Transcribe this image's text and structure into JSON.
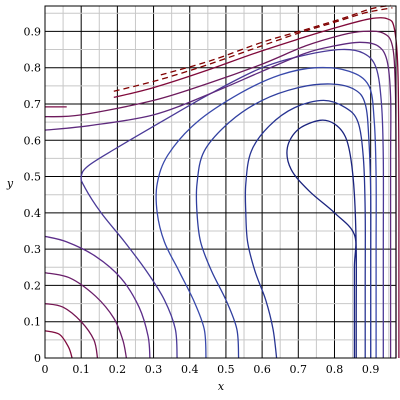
{
  "chart_data": {
    "type": "contour",
    "xlabel": "x",
    "ylabel": "y",
    "xlim": [
      0,
      0.97
    ],
    "ylim": [
      0,
      0.97
    ],
    "grid": true,
    "x_ticks": [
      0,
      0.1,
      0.2,
      0.3,
      0.4,
      0.5,
      0.6,
      0.7,
      0.8,
      0.9
    ],
    "y_ticks": [
      0,
      0.1,
      0.2,
      0.3,
      0.4,
      0.5,
      0.6,
      0.7,
      0.8,
      0.9
    ],
    "x_tick_labels": [
      "0",
      "0.1",
      "0.2",
      "0.3",
      "0.4",
      "0.5",
      "0.6",
      "0.7",
      "0.8",
      "0.9"
    ],
    "y_tick_labels": [
      "0",
      "0.1",
      "0.2",
      "0.3",
      "0.4",
      "0.5",
      "0.6",
      "0.7",
      "0.8",
      "0.9"
    ],
    "colors": {
      "grid": "#000000",
      "frame": "#000000",
      "line_low": "#1a1a8c",
      "line_high": "#800000"
    },
    "contours": [
      {
        "name": "c1",
        "color": "#1a237e",
        "points": [
          [
            0.855,
            0
          ],
          [
            0.855,
            0.12
          ],
          [
            0.855,
            0.25
          ],
          [
            0.855,
            0.34
          ],
          [
            0.8,
            0.4
          ],
          [
            0.73,
            0.46
          ],
          [
            0.68,
            0.52
          ],
          [
            0.67,
            0.58
          ],
          [
            0.7,
            0.63
          ],
          [
            0.76,
            0.655
          ],
          [
            0.8,
            0.645
          ],
          [
            0.83,
            0.61
          ],
          [
            0.845,
            0.55
          ],
          [
            0.855,
            0.45
          ],
          [
            0.86,
            0.3
          ],
          [
            0.86,
            0.12
          ],
          [
            0.86,
            0
          ]
        ]
      },
      {
        "name": "c2",
        "color": "#283593",
        "points": [
          [
            0.64,
            0
          ],
          [
            0.63,
            0.08
          ],
          [
            0.61,
            0.16
          ],
          [
            0.58,
            0.24
          ],
          [
            0.56,
            0.32
          ],
          [
            0.555,
            0.4
          ],
          [
            0.555,
            0.48
          ],
          [
            0.57,
            0.57
          ],
          [
            0.62,
            0.64
          ],
          [
            0.69,
            0.69
          ],
          [
            0.77,
            0.71
          ],
          [
            0.83,
            0.69
          ],
          [
            0.865,
            0.65
          ],
          [
            0.88,
            0.55
          ],
          [
            0.885,
            0.4
          ],
          [
            0.885,
            0.2
          ],
          [
            0.885,
            0
          ]
        ]
      },
      {
        "name": "c3",
        "color": "#303f9f",
        "points": [
          [
            0.535,
            0
          ],
          [
            0.53,
            0.08
          ],
          [
            0.5,
            0.16
          ],
          [
            0.46,
            0.24
          ],
          [
            0.43,
            0.32
          ],
          [
            0.42,
            0.4
          ],
          [
            0.42,
            0.48
          ],
          [
            0.44,
            0.57
          ],
          [
            0.51,
            0.65
          ],
          [
            0.6,
            0.71
          ],
          [
            0.7,
            0.745
          ],
          [
            0.79,
            0.755
          ],
          [
            0.855,
            0.74
          ],
          [
            0.885,
            0.7
          ],
          [
            0.895,
            0.6
          ],
          [
            0.9,
            0.45
          ],
          [
            0.9,
            0.25
          ],
          [
            0.9,
            0
          ]
        ]
      },
      {
        "name": "c4",
        "color": "#3949ab",
        "points": [
          [
            0.445,
            0
          ],
          [
            0.44,
            0.08
          ],
          [
            0.41,
            0.16
          ],
          [
            0.37,
            0.24
          ],
          [
            0.33,
            0.32
          ],
          [
            0.31,
            0.4
          ],
          [
            0.31,
            0.48
          ],
          [
            0.34,
            0.56
          ],
          [
            0.42,
            0.65
          ],
          [
            0.54,
            0.73
          ],
          [
            0.65,
            0.78
          ],
          [
            0.75,
            0.8
          ],
          [
            0.84,
            0.79
          ],
          [
            0.895,
            0.75
          ],
          [
            0.91,
            0.65
          ],
          [
            0.915,
            0.5
          ],
          [
            0.915,
            0.3
          ],
          [
            0.915,
            0
          ]
        ]
      },
      {
        "name": "c5",
        "color": "#4a3a98",
        "points": [
          [
            0.365,
            0
          ],
          [
            0.36,
            0.08
          ],
          [
            0.33,
            0.16
          ],
          [
            0.28,
            0.24
          ],
          [
            0.22,
            0.32
          ],
          [
            0.155,
            0.4
          ],
          [
            0.11,
            0.47
          ],
          [
            0.1,
            0.5
          ],
          [
            0.12,
            0.53
          ],
          [
            0.2,
            0.58
          ],
          [
            0.32,
            0.65
          ],
          [
            0.46,
            0.73
          ],
          [
            0.6,
            0.8
          ],
          [
            0.72,
            0.835
          ],
          [
            0.82,
            0.85
          ],
          [
            0.88,
            0.84
          ],
          [
            0.915,
            0.8
          ],
          [
            0.93,
            0.7
          ],
          [
            0.935,
            0.55
          ],
          [
            0.935,
            0.3
          ],
          [
            0.935,
            0
          ]
        ]
      },
      {
        "name": "c6",
        "color": "#5c2d8a",
        "points": [
          [
            0.0,
            0.335
          ],
          [
            0.06,
            0.32
          ],
          [
            0.14,
            0.28
          ],
          [
            0.21,
            0.22
          ],
          [
            0.26,
            0.14
          ],
          [
            0.285,
            0.06
          ],
          [
            0.29,
            0
          ]
        ]
      },
      {
        "name": "c7",
        "color": "#5e2a7e",
        "points": [
          [
            0.0,
            0.628
          ],
          [
            0.12,
            0.64
          ],
          [
            0.3,
            0.67
          ],
          [
            0.46,
            0.73
          ],
          [
            0.6,
            0.79
          ],
          [
            0.72,
            0.84
          ],
          [
            0.8,
            0.86
          ],
          [
            0.87,
            0.87
          ],
          [
            0.92,
            0.86
          ],
          [
            0.945,
            0.82
          ],
          [
            0.955,
            0.72
          ],
          [
            0.955,
            0.55
          ],
          [
            0.955,
            0.3
          ],
          [
            0.955,
            0
          ]
        ]
      },
      {
        "name": "c8",
        "color": "#6a1f6a",
        "points": [
          [
            0.0,
            0.235
          ],
          [
            0.07,
            0.22
          ],
          [
            0.14,
            0.17
          ],
          [
            0.19,
            0.11
          ],
          [
            0.215,
            0.05
          ],
          [
            0.225,
            0
          ]
        ]
      },
      {
        "name": "c9",
        "color": "#6d1a5c",
        "points": [
          [
            0.0,
            0.665
          ],
          [
            0.1,
            0.67
          ],
          [
            0.3,
            0.71
          ],
          [
            0.46,
            0.76
          ],
          [
            0.6,
            0.81
          ],
          [
            0.72,
            0.86
          ],
          [
            0.82,
            0.89
          ],
          [
            0.88,
            0.9
          ],
          [
            0.935,
            0.895
          ],
          [
            0.96,
            0.86
          ],
          [
            0.968,
            0.75
          ],
          [
            0.97,
            0.55
          ],
          [
            0.97,
            0.3
          ],
          [
            0.97,
            0
          ]
        ]
      },
      {
        "name": "c10",
        "color": "#741451",
        "points": [
          [
            0.0,
            0.15
          ],
          [
            0.05,
            0.14
          ],
          [
            0.1,
            0.1
          ],
          [
            0.135,
            0.05
          ],
          [
            0.145,
            0
          ]
        ]
      },
      {
        "name": "c11",
        "color": "#7b0f47",
        "points": [
          [
            0.0,
            0.692
          ],
          [
            0.06,
            0.692
          ]
        ]
      },
      {
        "name": "c12",
        "color": "#800b3e",
        "points": [
          [
            0.0,
            0.075
          ],
          [
            0.04,
            0.065
          ],
          [
            0.065,
            0.03
          ],
          [
            0.075,
            0
          ]
        ]
      },
      {
        "name": "c13",
        "color": "#80093a",
        "points": [
          [
            0.19,
            0.718
          ],
          [
            0.3,
            0.745
          ],
          [
            0.44,
            0.79
          ],
          [
            0.58,
            0.84
          ],
          [
            0.72,
            0.885
          ],
          [
            0.82,
            0.915
          ],
          [
            0.9,
            0.935
          ],
          [
            0.945,
            0.935
          ],
          [
            0.965,
            0.91
          ],
          [
            0.975,
            0.8
          ],
          [
            0.978,
            0.55
          ],
          [
            0.978,
            0.3
          ],
          [
            0.978,
            0
          ]
        ]
      }
    ],
    "dashed_contours": [
      {
        "name": "d1",
        "color": "#800000",
        "points": [
          [
            0.19,
            0.735
          ],
          [
            0.31,
            0.765
          ],
          [
            0.44,
            0.805
          ],
          [
            0.57,
            0.85
          ],
          [
            0.7,
            0.895
          ],
          [
            0.8,
            0.925
          ],
          [
            0.88,
            0.95
          ],
          [
            0.93,
            0.96
          ],
          [
            0.96,
            0.965
          ]
        ]
      },
      {
        "name": "d2",
        "color": "#800000",
        "points": [
          [
            0.32,
            0.78
          ],
          [
            0.46,
            0.82
          ],
          [
            0.6,
            0.87
          ],
          [
            0.72,
            0.905
          ],
          [
            0.82,
            0.935
          ],
          [
            0.9,
            0.962
          ],
          [
            0.955,
            0.972
          ]
        ]
      }
    ]
  }
}
